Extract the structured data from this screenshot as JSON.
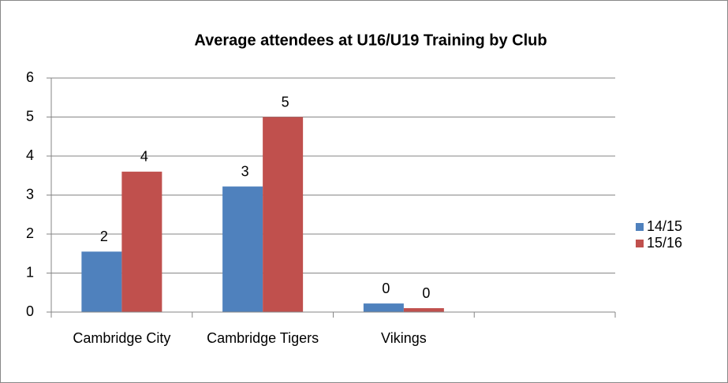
{
  "chart_data": {
    "type": "bar",
    "title": "Average attendees at U16/U19 Training by Club",
    "categories": [
      "Cambridge City",
      "Cambridge Tigers",
      "Vikings",
      null
    ],
    "series": [
      {
        "name": "14/15",
        "color": "#4f81bd",
        "values": [
          1.55,
          3.22,
          0.22,
          null
        ],
        "value_labels": [
          "2",
          "3",
          "0",
          null
        ]
      },
      {
        "name": "15/16",
        "color": "#c0504d",
        "values": [
          3.6,
          5,
          0.1,
          null
        ],
        "value_labels": [
          "4",
          "5",
          "0",
          null
        ]
      }
    ],
    "ylim": [
      0,
      6
    ],
    "yticks": [
      0,
      1,
      2,
      3,
      4,
      5,
      6
    ],
    "grid": true,
    "legend": "right"
  }
}
